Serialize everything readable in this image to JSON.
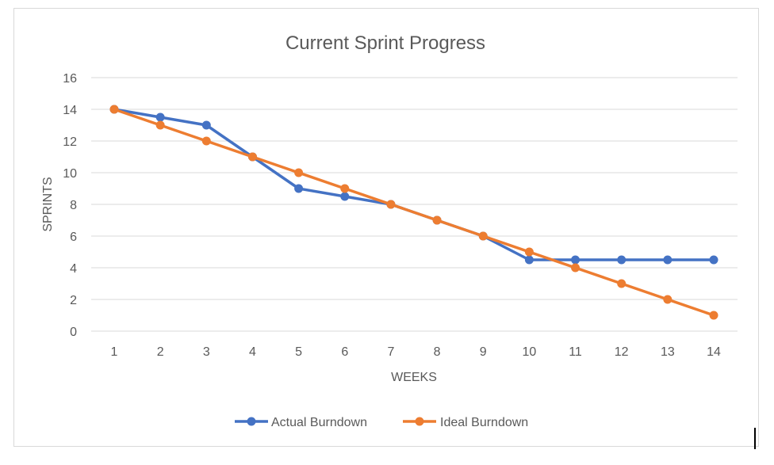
{
  "chart_data": {
    "type": "line",
    "title": "Current Sprint Progress",
    "xlabel": "WEEKS",
    "ylabel": "SPRINTS",
    "categories": [
      "1",
      "2",
      "3",
      "4",
      "5",
      "6",
      "7",
      "8",
      "9",
      "10",
      "11",
      "12",
      "13",
      "14"
    ],
    "ylim": [
      0,
      16
    ],
    "yticks": [
      0,
      2,
      4,
      6,
      8,
      10,
      12,
      14,
      16
    ],
    "grid": true,
    "legend_position": "bottom",
    "series": [
      {
        "name": "Actual Burndown",
        "color": "#4472c4",
        "values": [
          14,
          13.5,
          13,
          11,
          9,
          8.5,
          8,
          7,
          6,
          4.5,
          4.5,
          4.5,
          4.5,
          4.5
        ]
      },
      {
        "name": "Ideal Burndown",
        "color": "#ed7d31",
        "values": [
          14,
          13,
          12,
          11,
          10,
          9,
          8,
          7,
          6,
          5,
          4,
          3,
          2,
          1
        ]
      }
    ]
  }
}
